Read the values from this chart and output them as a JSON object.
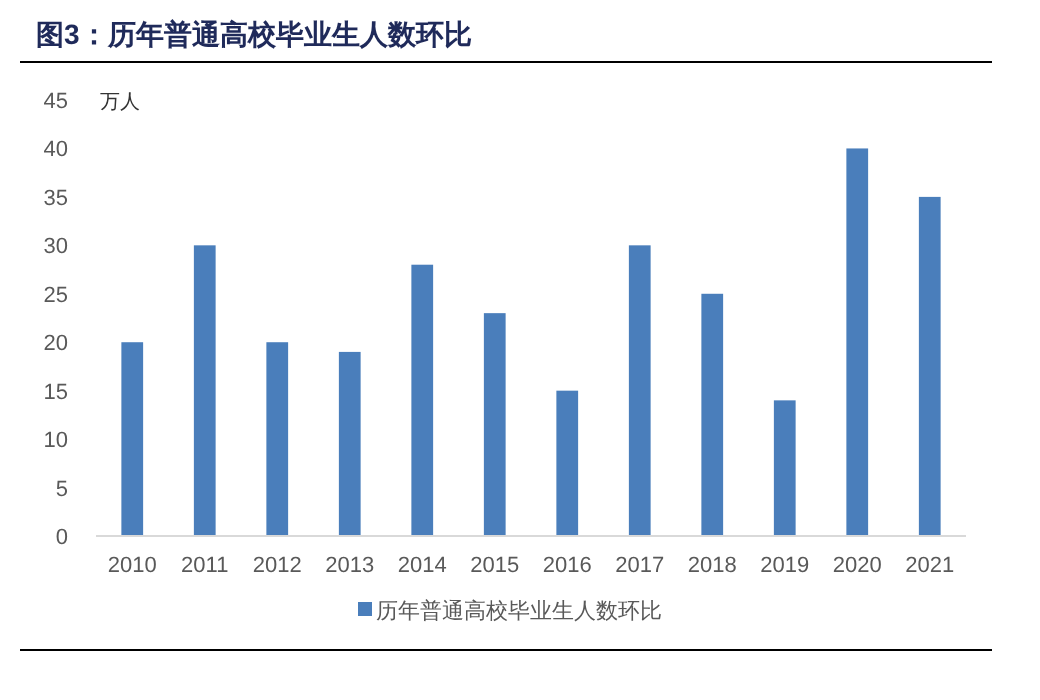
{
  "chart_data": {
    "type": "bar",
    "title": "图3：历年普通高校毕业生人数环比",
    "ylabel": "万人",
    "categories": [
      "2010",
      "2011",
      "2012",
      "2013",
      "2014",
      "2015",
      "2016",
      "2017",
      "2018",
      "2019",
      "2020",
      "2021"
    ],
    "series": [
      {
        "name": "历年普通高校毕业生人数环比",
        "color": "#4a7ebb",
        "values": [
          20,
          30,
          20,
          19,
          28,
          23,
          15,
          30,
          25,
          14,
          40,
          35
        ]
      }
    ],
    "ylim": [
      0,
      45
    ],
    "yticks": [
      0,
      5,
      10,
      15,
      20,
      25,
      30,
      35,
      40,
      45
    ],
    "grid": false,
    "legend": "bottom"
  }
}
